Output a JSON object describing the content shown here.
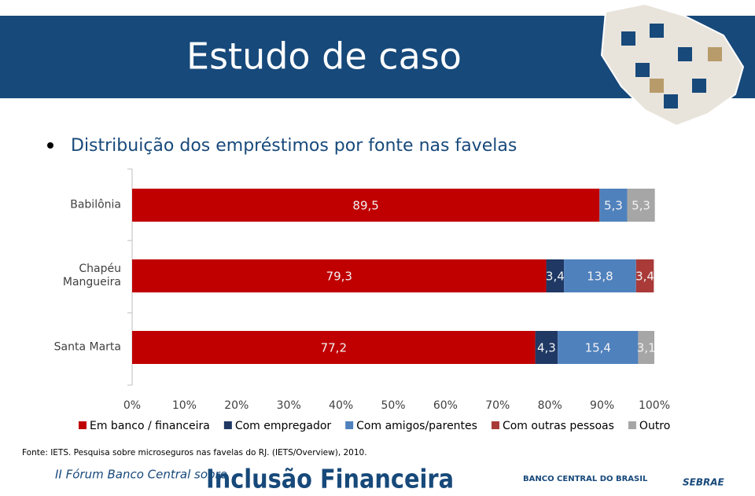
{
  "slide": {
    "title": "Estudo de caso",
    "source": "Fonte: IETS. Pesquisa sobre microseguros nas favelas  do RJ. (IETS/Overview), 2010.",
    "footer_line1": "II Fórum Banco Central sobre",
    "footer_line2": "Inclusão Financeira",
    "logo_bc": "BANCO CENTRAL DO BRASIL",
    "logo_sebrae": "SEBRAE"
  },
  "chart_data": {
    "type": "stacked_barh",
    "title": "Distribuição dos empréstimos por fonte nas favelas",
    "categories": [
      "Babilônia",
      "Chapéu Mangueira",
      "Santa Marta"
    ],
    "series": [
      {
        "name": "Em banco / financeira",
        "color": "#c00000",
        "values": [
          89.5,
          79.3,
          77.2
        ],
        "value_labels": [
          "89,5",
          "79,3",
          "77,2"
        ]
      },
      {
        "name": "Com empregador",
        "color": "#1f3864",
        "values": [
          null,
          3.4,
          4.3
        ],
        "value_labels": [
          null,
          "3,4",
          "4,3"
        ]
      },
      {
        "name": "Com amigos/parentes",
        "color": "#4f81bd",
        "values": [
          5.3,
          13.8,
          15.4
        ],
        "value_labels": [
          "5,3",
          "13,8",
          "15,4"
        ]
      },
      {
        "name": "Com outras pessoas",
        "color": "#a93a38",
        "values": [
          null,
          3.4,
          null
        ],
        "value_labels": [
          null,
          "3,4",
          null
        ]
      },
      {
        "name": "Outro",
        "color": "#a6a6a6",
        "values": [
          5.3,
          null,
          3.1
        ],
        "value_labels": [
          "5,3",
          null,
          "3,1"
        ]
      }
    ],
    "xlim": [
      0,
      100
    ],
    "xticks": [
      {
        "value": 0,
        "label": "0%"
      },
      {
        "value": 10,
        "label": "10%"
      },
      {
        "value": 20,
        "label": "20%"
      },
      {
        "value": 30,
        "label": "30%"
      },
      {
        "value": 40,
        "label": "40%"
      },
      {
        "value": 50,
        "label": "50%"
      },
      {
        "value": 60,
        "label": "60%"
      },
      {
        "value": 70,
        "label": "70%"
      },
      {
        "value": 80,
        "label": "80%"
      },
      {
        "value": 90,
        "label": "90%"
      },
      {
        "value": 100,
        "label": "100%"
      }
    ],
    "legend": "bottom"
  }
}
